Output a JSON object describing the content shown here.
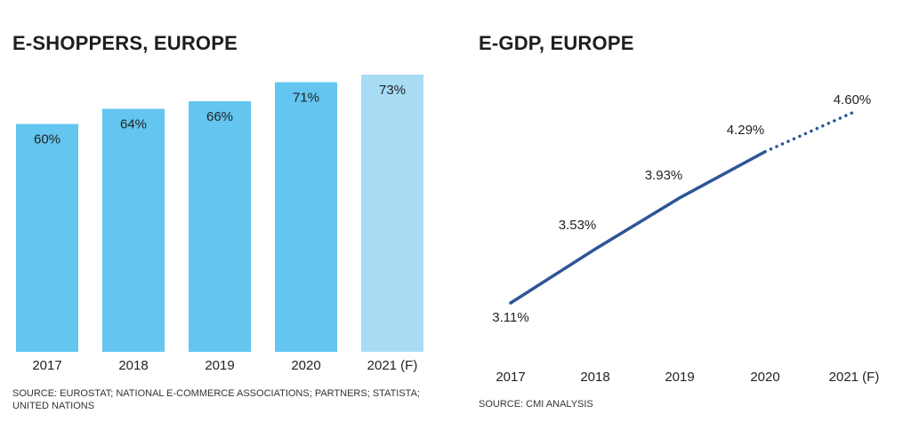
{
  "left_chart": {
    "title": "E-SHOPPERS, EUROPE",
    "source": "SOURCE: EUROSTAT; NATIONAL E-COMMERCE ASSOCIATIONS; PARTNERS; STATISTA; UNITED NATIONS",
    "colors": {
      "actual": "#63c5f0",
      "forecast": "#a8dcf5"
    }
  },
  "right_chart": {
    "title": "E-GDP, EUROPE",
    "source": "SOURCE: CMI ANALYSIS",
    "colors": {
      "line": "#2e5597"
    }
  },
  "chart_data": [
    {
      "type": "bar",
      "title": "E-SHOPPERS, EUROPE",
      "categories": [
        "2017",
        "2018",
        "2019",
        "2020",
        "2021 (F)"
      ],
      "values": [
        60,
        64,
        66,
        71,
        73
      ],
      "labels": [
        "60%",
        "64%",
        "66%",
        "71%",
        "73%"
      ],
      "forecast": [
        false,
        false,
        false,
        false,
        true
      ],
      "unit": "%",
      "xlabel": "",
      "ylabel": "",
      "ylim": [
        0,
        73
      ]
    },
    {
      "type": "line",
      "title": "E-GDP, EUROPE",
      "categories": [
        "2017",
        "2018",
        "2019",
        "2020",
        "2021 (F)"
      ],
      "values": [
        3.11,
        3.53,
        3.93,
        4.29,
        4.6
      ],
      "labels": [
        "3.11%",
        "3.53%",
        "3.93%",
        "4.29%",
        "4.60%"
      ],
      "forecast": [
        false,
        false,
        false,
        false,
        true
      ],
      "unit": "%",
      "xlabel": "",
      "ylabel": ""
    }
  ]
}
